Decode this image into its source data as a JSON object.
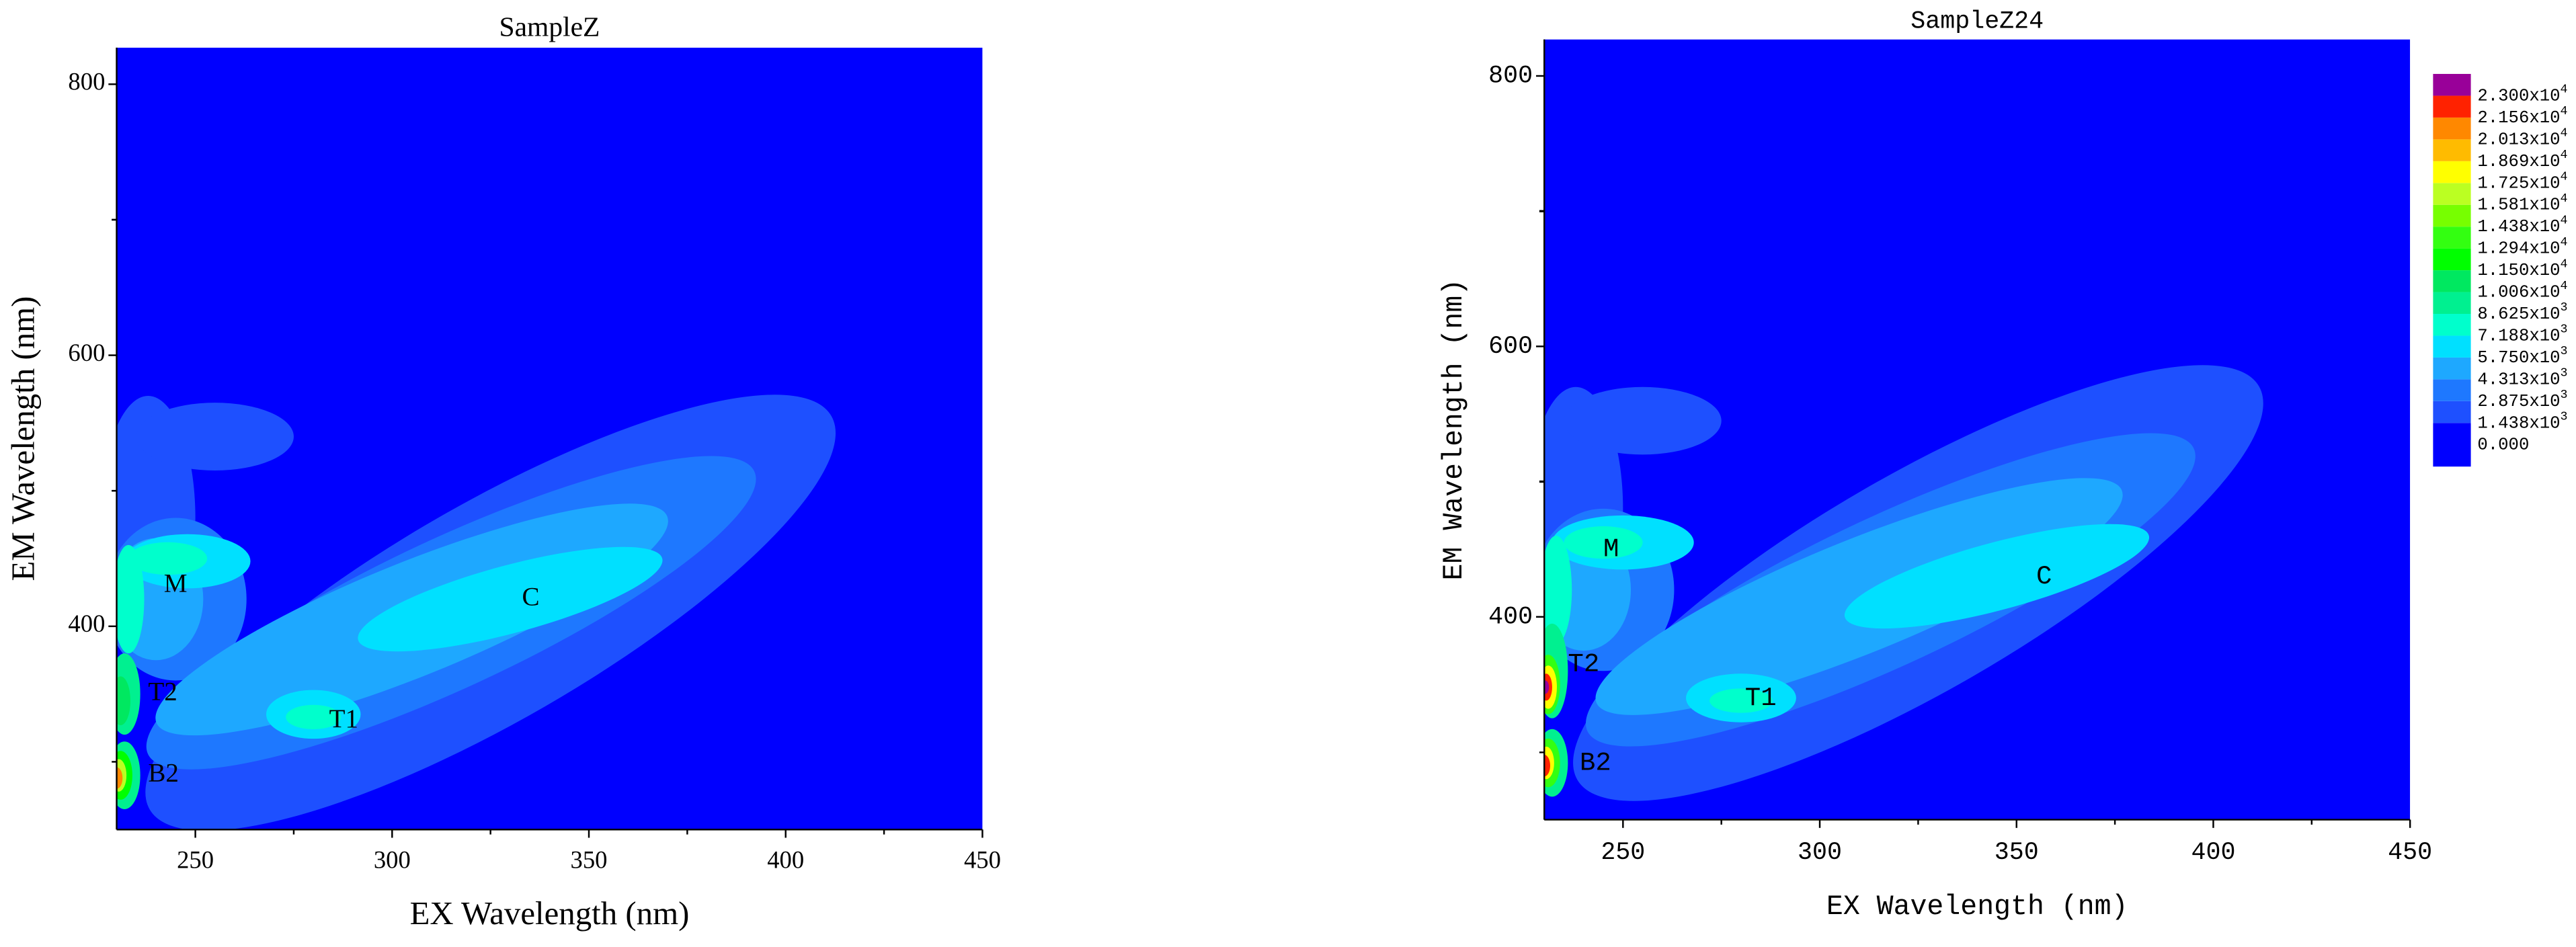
{
  "chart_data": [
    {
      "type": "contour",
      "title": "SampleZ",
      "x_label": "EX Wavelength (nm)",
      "y_label": "EM Wavelength (nm)",
      "xlim": [
        230,
        450
      ],
      "ylim": [
        250,
        827
      ],
      "xticks": [
        250,
        300,
        350,
        400,
        450
      ],
      "yticks": [
        400,
        600,
        800
      ],
      "annotations": [
        "M",
        "C",
        "T2",
        "T1",
        "B2"
      ]
    },
    {
      "type": "contour",
      "title": "SampleZ24",
      "x_label": "EX Wavelength (nm)",
      "y_label": "EM Wavelength (nm)",
      "xlim": [
        230,
        450
      ],
      "ylim": [
        250,
        827
      ],
      "xticks": [
        250,
        300,
        350,
        400,
        450
      ],
      "yticks": [
        400,
        600,
        800
      ],
      "annotations": [
        "M",
        "C",
        "T2",
        "T1",
        "B2"
      ],
      "levels": [
        {
          "value": 0,
          "label": "0.000"
        },
        {
          "value": 1438,
          "label": "1.438x10",
          "exponent": "3"
        },
        {
          "value": 2875,
          "label": "2.875x10",
          "exponent": "3"
        },
        {
          "value": 4313,
          "label": "4.313x10",
          "exponent": "3"
        },
        {
          "value": 5750,
          "label": "5.750x10",
          "exponent": "3"
        },
        {
          "value": 7188,
          "label": "7.188x10",
          "exponent": "3"
        },
        {
          "value": 8625,
          "label": "8.625x10",
          "exponent": "3"
        },
        {
          "value": 10060,
          "label": "1.006x10",
          "exponent": "4"
        },
        {
          "value": 11500,
          "label": "1.150x10",
          "exponent": "4"
        },
        {
          "value": 12940,
          "label": "1.294x10",
          "exponent": "4"
        },
        {
          "value": 14380,
          "label": "1.438x10",
          "exponent": "4"
        },
        {
          "value": 15810,
          "label": "1.581x10",
          "exponent": "4"
        },
        {
          "value": 17250,
          "label": "1.725x10",
          "exponent": "4"
        },
        {
          "value": 18690,
          "label": "1.869x10",
          "exponent": "4"
        },
        {
          "value": 20130,
          "label": "2.013x10",
          "exponent": "4"
        },
        {
          "value": 21560,
          "label": "2.156x10",
          "exponent": "4"
        },
        {
          "value": 23000,
          "label": "2.300x10",
          "exponent": "4"
        }
      ],
      "level_colors": [
        "#0000ff",
        "#1e50ff",
        "#1e78ff",
        "#1ea8ff",
        "#00e0ff",
        "#00ffcc",
        "#00f090",
        "#00e860",
        "#00ff00",
        "#33ff11",
        "#77ff00",
        "#bbff22",
        "#ffff00",
        "#ffbb00",
        "#ff8800",
        "#ff2200",
        "#990099"
      ]
    }
  ]
}
